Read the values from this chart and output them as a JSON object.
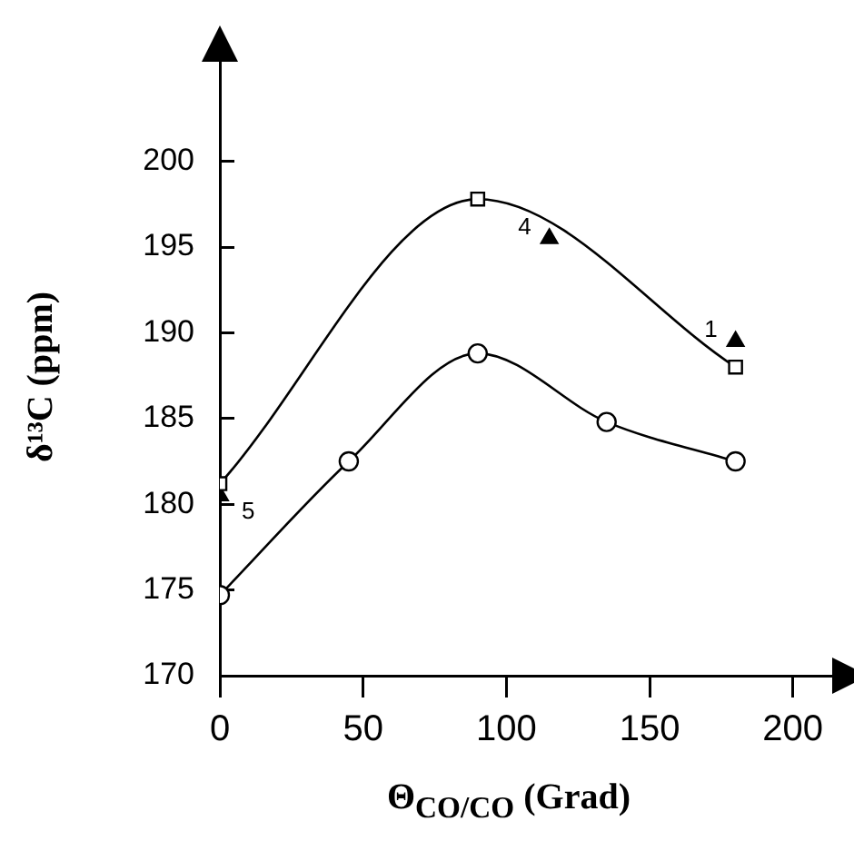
{
  "chart_data": {
    "type": "line",
    "xlabel": "Θ$_{CO/CO}$ (Grad)",
    "ylabel": "δ¹³C (ppm)",
    "xlim": [
      0,
      215
    ],
    "ylim": [
      170,
      206
    ],
    "xticks": [
      0,
      50,
      100,
      150,
      200
    ],
    "yticks": [
      170,
      175,
      180,
      185,
      190,
      195,
      200
    ],
    "grid": false,
    "legend": false,
    "series": [
      {
        "type": "line",
        "marker": "square",
        "color": "#000000",
        "x": [
          0,
          90,
          180
        ],
        "values": [
          181.2,
          197.8,
          188
        ]
      },
      {
        "type": "line",
        "marker": "circle",
        "color": "#000000",
        "x": [
          0,
          45,
          90,
          135,
          180
        ],
        "values": [
          174.7,
          182.5,
          188.8,
          184.8,
          182.5
        ]
      },
      {
        "type": "scatter",
        "marker": "triangle",
        "color": "#000000",
        "x": [
          0,
          115,
          180
        ],
        "values": [
          180.5,
          195.5,
          189.5
        ]
      }
    ],
    "annotations": [
      {
        "text": "5",
        "x": 0,
        "y": 180.5
      },
      {
        "text": "4",
        "x": 115,
        "y": 195.5
      },
      {
        "text": "1",
        "x": 180,
        "y": 189.5
      }
    ]
  }
}
